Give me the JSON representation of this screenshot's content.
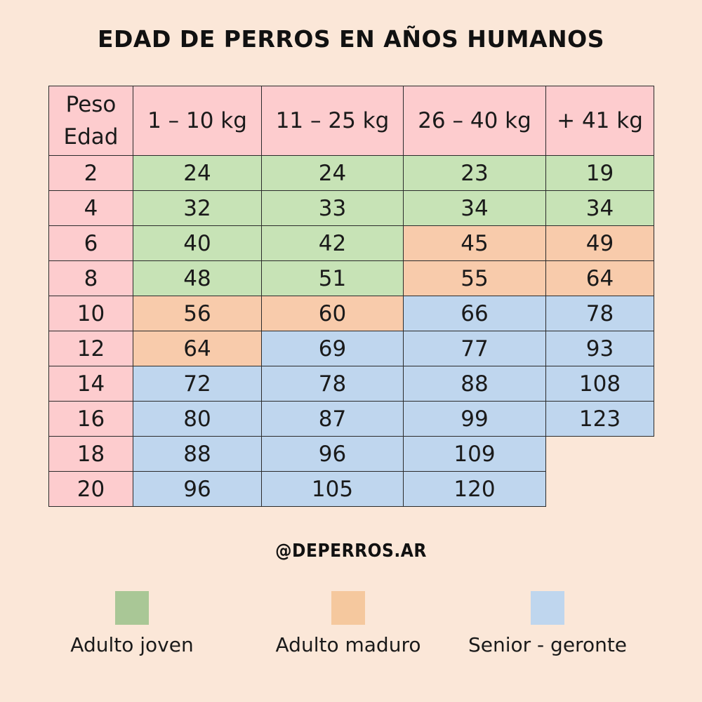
{
  "title": "EDAD DE PERROS EN AÑOS HUMANOS",
  "table": {
    "corner_top": "Peso",
    "corner_bottom": "Edad",
    "columns": [
      "1 – 10 kg",
      "11 – 25 kg",
      "26 – 40 kg",
      "+ 41 kg"
    ],
    "rows": [
      {
        "age": "2",
        "values": [
          "24",
          "24",
          "23",
          "19"
        ],
        "stages": [
          "joven",
          "joven",
          "joven",
          "joven"
        ]
      },
      {
        "age": "4",
        "values": [
          "32",
          "33",
          "34",
          "34"
        ],
        "stages": [
          "joven",
          "joven",
          "joven",
          "joven"
        ]
      },
      {
        "age": "6",
        "values": [
          "40",
          "42",
          "45",
          "49"
        ],
        "stages": [
          "joven",
          "joven",
          "maduro",
          "maduro"
        ]
      },
      {
        "age": "8",
        "values": [
          "48",
          "51",
          "55",
          "64"
        ],
        "stages": [
          "joven",
          "joven",
          "maduro",
          "maduro"
        ]
      },
      {
        "age": "10",
        "values": [
          "56",
          "60",
          "66",
          "78"
        ],
        "stages": [
          "maduro",
          "maduro",
          "senior",
          "senior"
        ]
      },
      {
        "age": "12",
        "values": [
          "64",
          "69",
          "77",
          "93"
        ],
        "stages": [
          "maduro",
          "senior",
          "senior",
          "senior"
        ]
      },
      {
        "age": "14",
        "values": [
          "72",
          "78",
          "88",
          "108"
        ],
        "stages": [
          "senior",
          "senior",
          "senior",
          "senior"
        ]
      },
      {
        "age": "16",
        "values": [
          "80",
          "87",
          "99",
          "123"
        ],
        "stages": [
          "senior",
          "senior",
          "senior",
          "senior"
        ]
      },
      {
        "age": "18",
        "values": [
          "88",
          "96",
          "109",
          ""
        ],
        "stages": [
          "senior",
          "senior",
          "senior",
          "empty"
        ]
      },
      {
        "age": "20",
        "values": [
          "96",
          "105",
          "120",
          ""
        ],
        "stages": [
          "senior",
          "senior",
          "senior",
          "empty"
        ]
      }
    ]
  },
  "handle": "@DEPERROS.AR",
  "legend": [
    {
      "key": "joven",
      "label": "Adulto joven",
      "color": "#a9c796"
    },
    {
      "key": "maduro",
      "label": "Adulto maduro",
      "color": "#f5c89e"
    },
    {
      "key": "senior",
      "label": "Senior - geronte",
      "color": "#bfd6ee"
    }
  ],
  "colors": {
    "background": "#fbe7d8",
    "header": "#fdccce",
    "joven": "#c7e3b6",
    "maduro": "#f8cbab",
    "senior": "#bfd6ee"
  }
}
